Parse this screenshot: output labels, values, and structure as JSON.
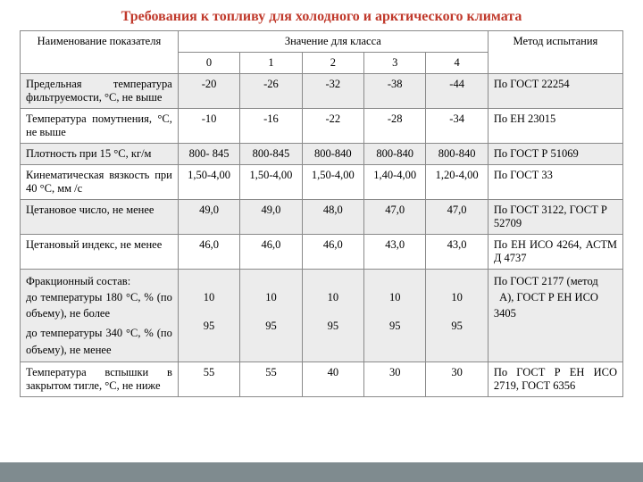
{
  "title": "Требования к топливу для холодного и арктического климата",
  "title_color": "#c0392b",
  "header": {
    "name": "Наименование показателя",
    "values": "Значение для класса",
    "classes": [
      "0",
      "1",
      "2",
      "3",
      "4"
    ],
    "method": "Метод испытания"
  },
  "colors": {
    "shade_bg": "#ececec",
    "border": "#8a8a8a",
    "footer": "#7f8b8f"
  },
  "rows": [
    {
      "shade": true,
      "name": "Предельная температура фильтруемости, °С, не выше",
      "v": [
        "-20",
        "-26",
        "-32",
        "-38",
        "-44"
      ],
      "method": "По ГОСТ 22254"
    },
    {
      "shade": false,
      "name": "Температура помутнения, °С, не выше",
      "v": [
        "-10",
        "-16",
        "-22",
        "-28",
        "-34"
      ],
      "method": "По ЕН 23015"
    },
    {
      "shade": true,
      "name": "Плотность при 15 °С, кг/м",
      "v": [
        "800- 845",
        "800-845",
        "800-840",
        "800-840",
        "800-840"
      ],
      "method": "По ГОСТ Р 51069"
    },
    {
      "shade": false,
      "name": "Кинематическая вязкость при 40 °С, мм /с",
      "v": [
        "1,50-4,00",
        "1,50-4,00",
        "1,50-4,00",
        "1,40-4,00",
        "1,20-4,00"
      ],
      "method": "По ГОСТ 33"
    },
    {
      "shade": true,
      "name": "Цетановое число, не менее",
      "v": [
        "49,0",
        "49,0",
        "48,0",
        "47,0",
        "47,0"
      ],
      "method": "По ГОСТ 3122, ГОСТ Р 52709"
    },
    {
      "shade": false,
      "name": "Цетановый индекс, не менее",
      "v": [
        "46,0",
        "46,0",
        "46,0",
        "43,0",
        "43,0"
      ],
      "method": "По ЕН ИСО 4264, АСТМ Д 4737",
      "method_justify": true
    }
  ],
  "frac": {
    "shade": true,
    "name_lines": [
      "Фракционный состав:",
      "до температуры 180 °С, % (по объему), не более",
      "до температуры 340 °С, % (по объему), не менее"
    ],
    "v1": [
      "10",
      "10",
      "10",
      "10",
      "10"
    ],
    "v2": [
      "95",
      "95",
      "95",
      "95",
      "95"
    ],
    "method_lines": [
      "По ГОСТ 2177 (метод",
      "  А), ГОСТ Р ЕН ИСО 3405"
    ]
  },
  "last": {
    "shade": false,
    "name": "Температура вспышки в закрытом тигле, °С, не ниже",
    "v": [
      "55",
      "55",
      "40",
      "30",
      "30"
    ],
    "method": "По ГОСТ Р ЕН ИСО 2719, ГОСТ 6356",
    "method_justify": true
  }
}
